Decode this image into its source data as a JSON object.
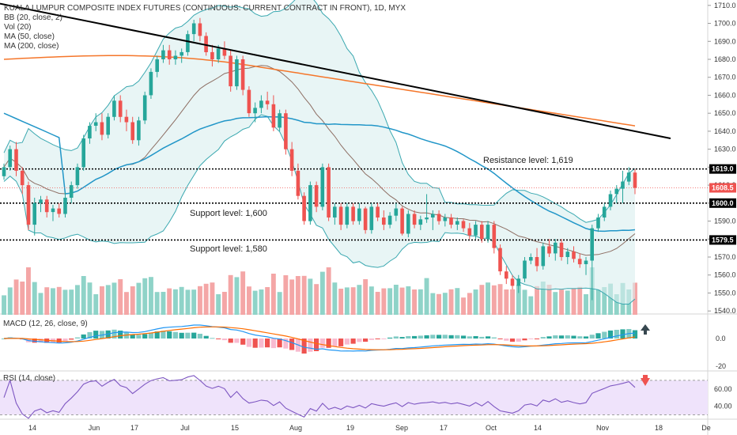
{
  "header": {
    "title": "KUALA LUMPUR COMPOSITE INDEX FUTURES (CONTINUOUS: CURRENT CONTRACT IN FRONT), 1D, MYX",
    "indicators": [
      "BB (20, close, 2)",
      "Vol (20)",
      "MA (50, close)",
      "MA (200, close)"
    ]
  },
  "macd_label": "MACD (12, 26, close, 9)",
  "rsi_label": "RSI (14, close)",
  "annotations": {
    "resistance": "Resistance level: 1,619",
    "support_1600": "Support level: 1,600",
    "support_1580": "Support level: 1,580"
  },
  "price_tags": {
    "resistance": "1619.0",
    "last": "1608.5",
    "support_1600": "1600.0",
    "support_1580": "1579.5"
  },
  "macd_axis": [
    "0.0",
    "-20"
  ],
  "rsi_axis": [
    "60.00",
    "40.00"
  ],
  "colors": {
    "up": "#26a69a",
    "down": "#ef5350",
    "up_vol": "#8fd3c8",
    "down_vol": "#f4a6a6",
    "bb": "#3aa8b0",
    "bb_fill": "#d9eeee",
    "ma50": "#2196c8",
    "ma200": "#f5762a",
    "trendline": "#000000",
    "macd": "#2196f3",
    "signal": "#ff6d00",
    "rsi": "#7e57c2",
    "rsi_band": "#efe3fb"
  },
  "chart_data": {
    "type": "candlestick",
    "symbol": "KLCI futures continuous, 1D, MYX",
    "ylim": [
      1537,
      1713
    ],
    "y_ticks": [
      1540,
      1550,
      1560,
      1570,
      1580,
      1590,
      1600,
      1610,
      1620,
      1630,
      1640,
      1650,
      1660,
      1670,
      1680,
      1690,
      1700,
      1710
    ],
    "x_tick_labels": [
      "14",
      "Jun",
      "17",
      "Jul",
      "15",
      "Aug",
      "19",
      "Sep",
      "17",
      "Oct",
      "14",
      "Nov",
      "18",
      "De"
    ],
    "candles": [
      [
        1615,
        1622,
        1613,
        1620
      ],
      [
        1620,
        1632,
        1618,
        1630
      ],
      [
        1630,
        1634,
        1615,
        1618
      ],
      [
        1618,
        1620,
        1605,
        1610
      ],
      [
        1610,
        1612,
        1585,
        1588
      ],
      [
        1588,
        1603,
        1582,
        1600
      ],
      [
        1600,
        1604,
        1595,
        1602
      ],
      [
        1602,
        1604,
        1592,
        1595
      ],
      [
        1595,
        1599,
        1590,
        1597
      ],
      [
        1597,
        1600,
        1592,
        1594
      ],
      [
        1594,
        1606,
        1592,
        1603
      ],
      [
        1603,
        1612,
        1600,
        1610
      ],
      [
        1610,
        1622,
        1608,
        1620
      ],
      [
        1620,
        1638,
        1618,
        1636
      ],
      [
        1636,
        1645,
        1633,
        1643
      ],
      [
        1643,
        1650,
        1640,
        1645
      ],
      [
        1645,
        1650,
        1635,
        1638
      ],
      [
        1638,
        1650,
        1636,
        1648
      ],
      [
        1648,
        1660,
        1646,
        1657
      ],
      [
        1657,
        1660,
        1645,
        1648
      ],
      [
        1648,
        1652,
        1640,
        1645
      ],
      [
        1645,
        1648,
        1633,
        1635
      ],
      [
        1635,
        1648,
        1632,
        1646
      ],
      [
        1646,
        1662,
        1644,
        1660
      ],
      [
        1660,
        1675,
        1658,
        1673
      ],
      [
        1673,
        1682,
        1670,
        1680
      ],
      [
        1680,
        1688,
        1678,
        1685
      ],
      [
        1685,
        1688,
        1677,
        1680
      ],
      [
        1680,
        1685,
        1677,
        1682
      ],
      [
        1682,
        1686,
        1678,
        1684
      ],
      [
        1684,
        1696,
        1682,
        1694
      ],
      [
        1694,
        1702,
        1690,
        1700
      ],
      [
        1700,
        1703,
        1690,
        1693
      ],
      [
        1693,
        1695,
        1682,
        1684
      ],
      [
        1684,
        1688,
        1676,
        1680
      ],
      [
        1680,
        1688,
        1678,
        1686
      ],
      [
        1686,
        1690,
        1680,
        1682
      ],
      [
        1682,
        1685,
        1662,
        1665
      ],
      [
        1665,
        1682,
        1663,
        1680
      ],
      [
        1680,
        1682,
        1660,
        1663
      ],
      [
        1663,
        1665,
        1648,
        1650
      ],
      [
        1650,
        1656,
        1645,
        1653
      ],
      [
        1653,
        1660,
        1650,
        1657
      ],
      [
        1657,
        1662,
        1652,
        1655
      ],
      [
        1655,
        1660,
        1640,
        1642
      ],
      [
        1642,
        1652,
        1640,
        1650
      ],
      [
        1650,
        1652,
        1627,
        1630
      ],
      [
        1630,
        1634,
        1615,
        1618
      ],
      [
        1618,
        1622,
        1602,
        1604
      ],
      [
        1604,
        1606,
        1588,
        1590
      ],
      [
        1590,
        1612,
        1588,
        1610
      ],
      [
        1610,
        1612,
        1595,
        1598
      ],
      [
        1598,
        1622,
        1596,
        1620
      ],
      [
        1620,
        1622,
        1590,
        1592
      ],
      [
        1592,
        1600,
        1588,
        1598
      ],
      [
        1598,
        1600,
        1585,
        1588
      ],
      [
        1588,
        1600,
        1586,
        1598
      ],
      [
        1598,
        1600,
        1588,
        1590
      ],
      [
        1590,
        1600,
        1588,
        1597
      ],
      [
        1597,
        1598,
        1583,
        1585
      ],
      [
        1585,
        1600,
        1583,
        1598
      ],
      [
        1598,
        1600,
        1590,
        1592
      ],
      [
        1592,
        1596,
        1585,
        1588
      ],
      [
        1588,
        1595,
        1586,
        1593
      ],
      [
        1593,
        1600,
        1590,
        1597
      ],
      [
        1597,
        1598,
        1582,
        1583
      ],
      [
        1583,
        1596,
        1581,
        1594
      ],
      [
        1594,
        1596,
        1586,
        1588
      ],
      [
        1588,
        1593,
        1585,
        1591
      ],
      [
        1591,
        1605,
        1589,
        1592
      ],
      [
        1592,
        1596,
        1585,
        1594
      ],
      [
        1594,
        1596,
        1588,
        1590
      ],
      [
        1590,
        1594,
        1587,
        1592
      ],
      [
        1592,
        1594,
        1586,
        1588
      ],
      [
        1588,
        1592,
        1585,
        1590
      ],
      [
        1590,
        1591,
        1584,
        1586
      ],
      [
        1586,
        1589,
        1580,
        1582
      ],
      [
        1582,
        1590,
        1580,
        1588
      ],
      [
        1588,
        1590,
        1578,
        1580
      ],
      [
        1580,
        1590,
        1578,
        1588
      ],
      [
        1588,
        1590,
        1572,
        1575
      ],
      [
        1575,
        1577,
        1560,
        1562
      ],
      [
        1562,
        1565,
        1555,
        1558
      ],
      [
        1558,
        1560,
        1552,
        1554
      ],
      [
        1554,
        1560,
        1550,
        1558
      ],
      [
        1558,
        1570,
        1556,
        1568
      ],
      [
        1568,
        1572,
        1566,
        1570
      ],
      [
        1570,
        1575,
        1562,
        1565
      ],
      [
        1565,
        1578,
        1563,
        1576
      ],
      [
        1576,
        1580,
        1570,
        1572
      ],
      [
        1572,
        1580,
        1568,
        1578
      ],
      [
        1578,
        1580,
        1568,
        1570
      ],
      [
        1570,
        1575,
        1566,
        1573
      ],
      [
        1573,
        1576,
        1567,
        1569
      ],
      [
        1569,
        1572,
        1564,
        1566
      ],
      [
        1566,
        1570,
        1560,
        1568
      ],
      [
        1568,
        1588,
        1546,
        1586
      ],
      [
        1586,
        1594,
        1584,
        1592
      ],
      [
        1592,
        1600,
        1590,
        1598
      ],
      [
        1598,
        1607,
        1596,
        1605
      ],
      [
        1605,
        1610,
        1600,
        1608
      ],
      [
        1608,
        1618,
        1600,
        1612
      ],
      [
        1612,
        1620,
        1610,
        1617
      ],
      [
        1617,
        1619,
        1605,
        1608.5
      ]
    ],
    "levels": [
      {
        "name": "Resistance level: 1,619",
        "value": 1619
      },
      {
        "name": "Support level: 1,600",
        "value": 1600
      },
      {
        "name": "Support level: 1,580",
        "value": 1579.5
      }
    ],
    "last_price": 1608.5
  }
}
